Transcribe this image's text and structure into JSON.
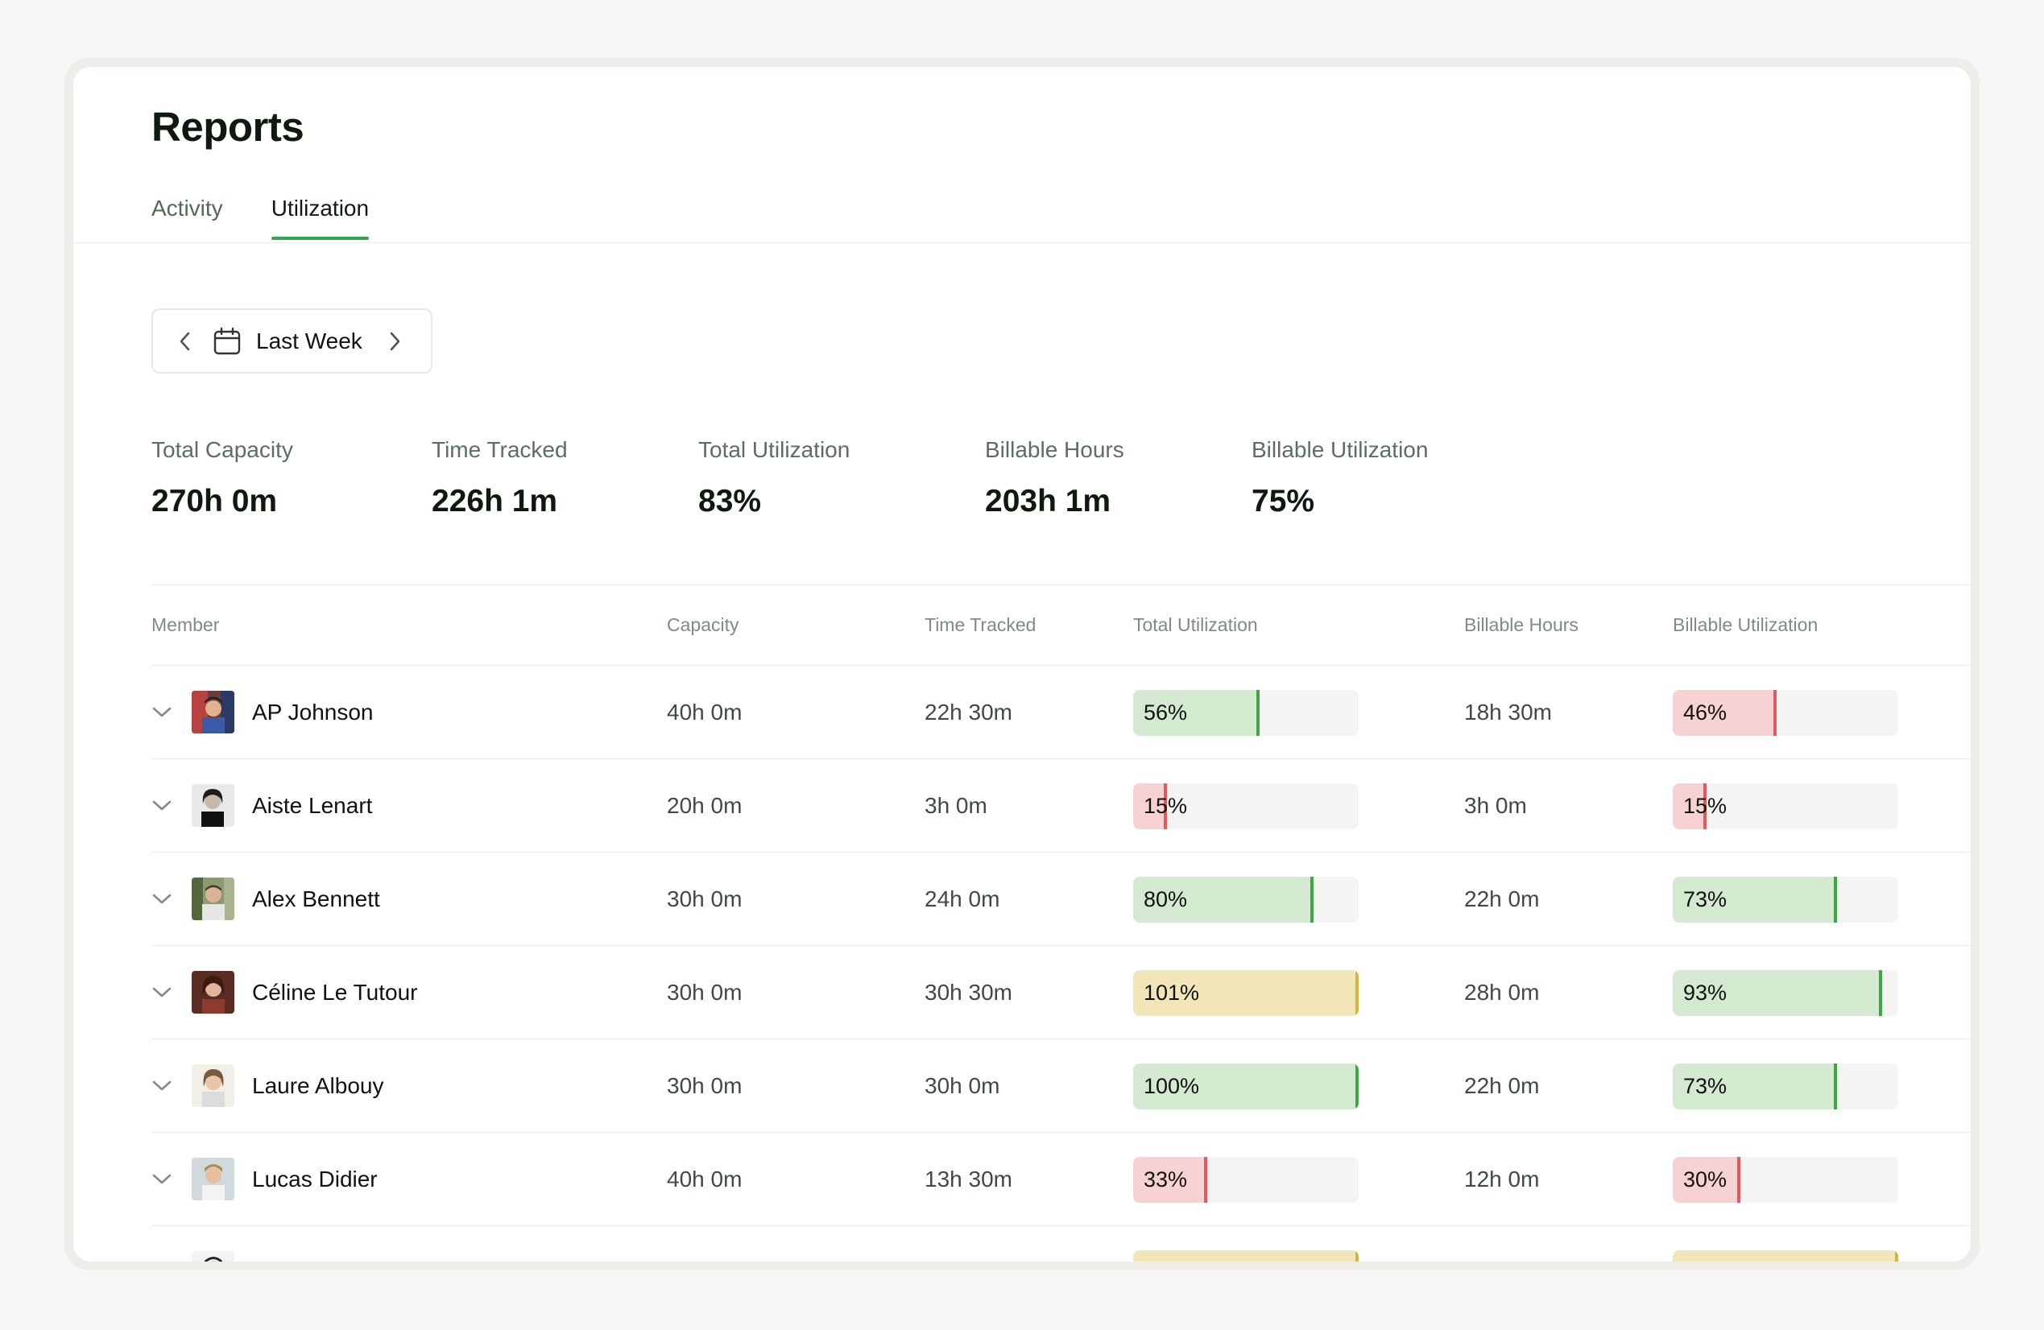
{
  "page": {
    "title": "Reports",
    "tabs": [
      {
        "label": "Activity",
        "active": false
      },
      {
        "label": "Utilization",
        "active": true
      }
    ]
  },
  "date_picker": {
    "label": "Last Week"
  },
  "stats": [
    {
      "label": "Total Capacity",
      "value": "270h 0m"
    },
    {
      "label": "Time Tracked",
      "value": "226h 1m"
    },
    {
      "label": "Total Utilization",
      "value": "83%"
    },
    {
      "label": "Billable Hours",
      "value": "203h 1m"
    },
    {
      "label": "Billable Utilization",
      "value": "75%"
    }
  ],
  "table": {
    "headers": {
      "member": "Member",
      "capacity": "Capacity",
      "time_tracked": "Time Tracked",
      "total_utilization": "Total Utilization",
      "billable_hours": "Billable Hours",
      "billable_utilization": "Billable Utilization"
    },
    "rows": [
      {
        "name": "AP Johnson",
        "capacity": "40h 0m",
        "time_tracked": "22h 30m",
        "total_util": "56%",
        "total_util_pct": 56,
        "total_util_status": "green",
        "billable_hours": "18h 30m",
        "billable_util": "46%",
        "billable_util_pct": 46,
        "billable_util_status": "red"
      },
      {
        "name": "Aiste Lenart",
        "capacity": "20h 0m",
        "time_tracked": "3h 0m",
        "total_util": "15%",
        "total_util_pct": 15,
        "total_util_status": "red",
        "billable_hours": "3h 0m",
        "billable_util": "15%",
        "billable_util_pct": 15,
        "billable_util_status": "red"
      },
      {
        "name": "Alex Bennett",
        "capacity": "30h 0m",
        "time_tracked": "24h 0m",
        "total_util": "80%",
        "total_util_pct": 80,
        "total_util_status": "green",
        "billable_hours": "22h 0m",
        "billable_util": "73%",
        "billable_util_pct": 73,
        "billable_util_status": "green"
      },
      {
        "name": "Céline Le Tutour",
        "capacity": "30h 0m",
        "time_tracked": "30h 30m",
        "total_util": "101%",
        "total_util_pct": 100,
        "total_util_status": "yellow",
        "billable_hours": "28h 0m",
        "billable_util": "93%",
        "billable_util_pct": 93,
        "billable_util_status": "green"
      },
      {
        "name": "Laure Albouy",
        "capacity": "30h 0m",
        "time_tracked": "30h 0m",
        "total_util": "100%",
        "total_util_pct": 100,
        "total_util_status": "green",
        "billable_hours": "22h 0m",
        "billable_util": "73%",
        "billable_util_pct": 73,
        "billable_util_status": "green"
      },
      {
        "name": "Lucas Didier",
        "capacity": "40h 0m",
        "time_tracked": "13h 30m",
        "total_util": "33%",
        "total_util_pct": 33,
        "total_util_status": "red",
        "billable_hours": "12h 0m",
        "billable_util": "30%",
        "billable_util_pct": 30,
        "billable_util_status": "red"
      },
      {
        "name": "",
        "capacity": "",
        "time_tracked": "",
        "total_util": "",
        "total_util_pct": 100,
        "total_util_status": "yellow",
        "billable_hours": "",
        "billable_util": "",
        "billable_util_pct": 100,
        "billable_util_status": "yellow"
      }
    ]
  },
  "colors": {
    "accent_green": "#2fa84f",
    "good": "#3ba844",
    "low": "#e45a5a",
    "over": "#d7b43f"
  }
}
